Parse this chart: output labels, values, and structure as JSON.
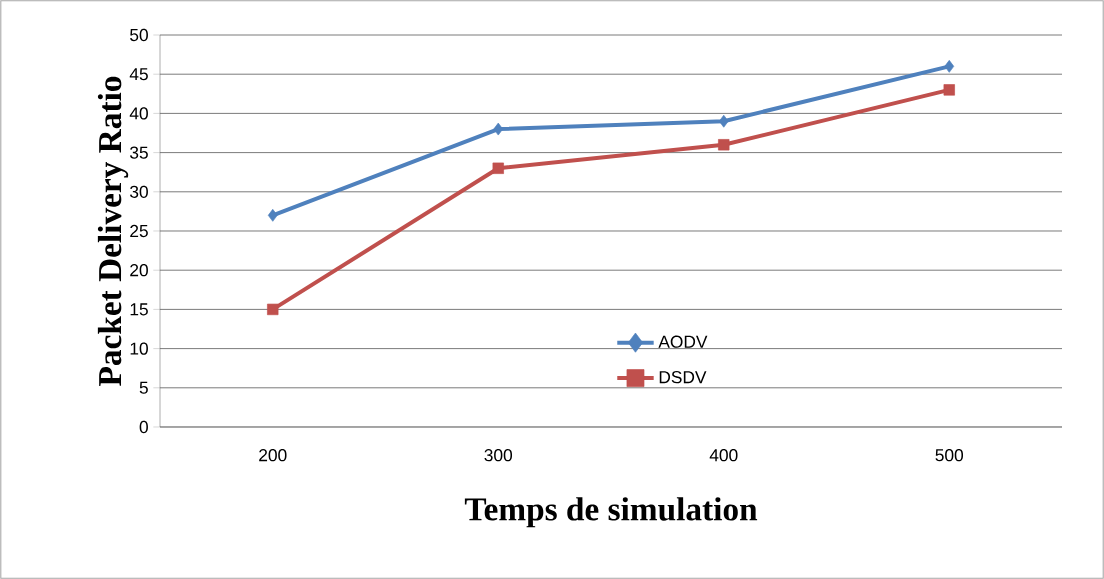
{
  "chart_data": {
    "type": "line",
    "xlabel": "Temps de simulation",
    "ylabel": "Packet Delivery Ratio",
    "categories": [
      "200",
      "300",
      "400",
      "500"
    ],
    "series": [
      {
        "name": "AODV",
        "color": "#4f81bd",
        "marker": "diamond",
        "values": [
          27,
          38,
          39,
          46
        ]
      },
      {
        "name": "DSDV",
        "color": "#c0504d",
        "marker": "square",
        "values": [
          15,
          33,
          36,
          43
        ]
      }
    ],
    "ylim": [
      0,
      50
    ],
    "yticks": [
      0,
      5,
      10,
      15,
      20,
      25,
      30,
      35,
      40,
      45,
      50
    ],
    "grid": "y",
    "legend": "bottom",
    "line_style": "solid"
  }
}
